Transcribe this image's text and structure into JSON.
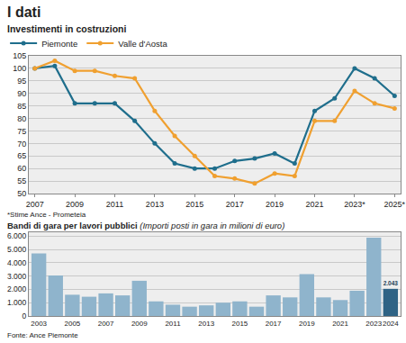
{
  "header": {
    "title": "I dati"
  },
  "source": "Fonte: Ance Piemonte",
  "chart_data": [
    {
      "type": "line",
      "title": "Investimenti in costruzioni",
      "footnote": "*Stime Ance - Prometeia",
      "categories": [
        "2007",
        null,
        "2009",
        null,
        "2011",
        null,
        "2013",
        null,
        "2015",
        null,
        "2017",
        null,
        "2019",
        null,
        "2021",
        null,
        "2023*",
        null,
        "2025*"
      ],
      "series": [
        {
          "name": "Piemonte",
          "color": "#1f6e8c",
          "marker": "circle",
          "values": [
            100,
            101,
            86,
            86,
            86,
            79,
            70,
            62,
            60,
            60,
            63,
            64,
            66,
            62,
            83,
            88,
            100,
            96,
            89
          ]
        },
        {
          "name": "Valle d'Aosta",
          "color": "#f0a030",
          "marker": "circle",
          "values": [
            100,
            103,
            99,
            99,
            97,
            96,
            83,
            73,
            65,
            57,
            56,
            54,
            58,
            57,
            79,
            79,
            91,
            86,
            84
          ]
        }
      ],
      "ylim": [
        50,
        105
      ],
      "yticks": [
        50,
        55,
        60,
        65,
        70,
        75,
        80,
        85,
        90,
        95,
        100,
        105
      ],
      "grid": true,
      "legend": "top"
    },
    {
      "type": "bar",
      "title": "Bandi di gara per lavori pubblici",
      "subtitle": "(Importi posti in gara in milioni di euro)",
      "categories": [
        "2003",
        null,
        "2005",
        null,
        "2007",
        null,
        "2009",
        null,
        "2011",
        null,
        "2013",
        null,
        "2015",
        null,
        "2017",
        null,
        "2019",
        null,
        "2021",
        null,
        "2023",
        "2024"
      ],
      "values": [
        4700,
        3050,
        1600,
        1450,
        1700,
        1550,
        2650,
        1100,
        850,
        700,
        800,
        1000,
        1100,
        700,
        1550,
        1400,
        3150,
        1400,
        1200,
        1900,
        5900,
        2043
      ],
      "value_labels": [
        null,
        null,
        null,
        null,
        null,
        null,
        null,
        null,
        null,
        null,
        null,
        null,
        null,
        null,
        null,
        null,
        null,
        null,
        null,
        null,
        null,
        "2.043"
      ],
      "data_labels": true,
      "colors": [
        "#8fb4cc",
        "#8fb4cc",
        "#8fb4cc",
        "#8fb4cc",
        "#8fb4cc",
        "#8fb4cc",
        "#8fb4cc",
        "#8fb4cc",
        "#8fb4cc",
        "#8fb4cc",
        "#8fb4cc",
        "#8fb4cc",
        "#8fb4cc",
        "#8fb4cc",
        "#8fb4cc",
        "#8fb4cc",
        "#8fb4cc",
        "#8fb4cc",
        "#8fb4cc",
        "#8fb4cc",
        "#8fb4cc",
        "#2f6385"
      ],
      "ylim": [
        0,
        6300
      ],
      "yticks": [
        0,
        {
          "value": 1000,
          "label": "1.000"
        },
        {
          "value": 2000,
          "label": "2.000"
        },
        {
          "value": 3000,
          "label": "3.000"
        },
        {
          "value": 4000,
          "label": "4.000"
        },
        {
          "value": 5000,
          "label": "5.000"
        },
        {
          "value": 6000,
          "label": "6.000"
        }
      ],
      "grid": true
    }
  ]
}
